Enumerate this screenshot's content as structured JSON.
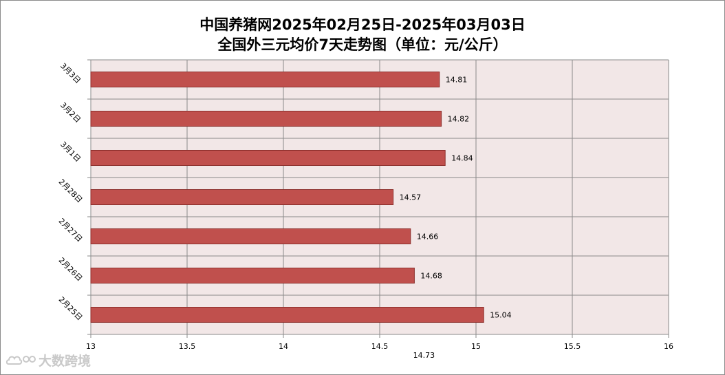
{
  "chart_data": {
    "type": "bar",
    "orientation": "horizontal",
    "title": "中国养猪网2025年02月25日-2025年03月03日",
    "subtitle": "全国外三元均价7天走势图（单位：元/公斤）",
    "categories": [
      "3月3日",
      "3月2日",
      "3月1日",
      "2月28日",
      "2月27日",
      "2月26日",
      "2月25日"
    ],
    "values": [
      14.81,
      14.82,
      14.84,
      14.57,
      14.66,
      14.68,
      15.04
    ],
    "value_labels": [
      "14.81",
      "14.82",
      "14.84",
      "14.57",
      "14.66",
      "14.68",
      "15.04"
    ],
    "xlim": [
      13,
      16
    ],
    "x_ticks": [
      13,
      13.5,
      14,
      14.5,
      15,
      15.5,
      16
    ],
    "x_tick_labels": [
      "13",
      "13.5",
      "14",
      "14.5",
      "15",
      "15.5",
      "16"
    ],
    "x_annotation": "14.73",
    "x_annotation_value": 14.73,
    "xlabel": "",
    "ylabel": "",
    "grid": true,
    "legend": "none",
    "colors": {
      "bar_fill": "#c0504d",
      "bar_stroke": "#8c2f2c",
      "plot_background": "#f2e7e7",
      "grid": "#8a8a8a"
    }
  },
  "watermark": {
    "text": "大数跨境",
    "icon": "cloud-logo-icon"
  }
}
